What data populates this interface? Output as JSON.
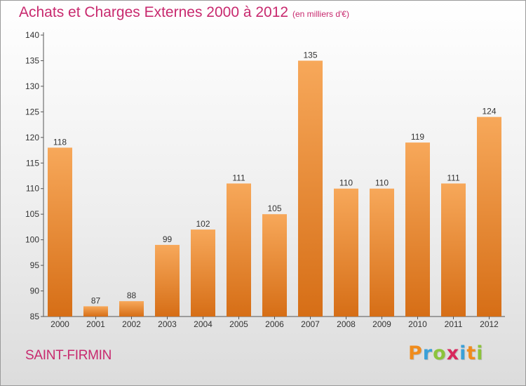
{
  "title": "Achats et Charges Externes 2000 à 2012",
  "subtitle": "(en milliers d'€)",
  "commune": "SAINT-FIRMIN",
  "logo": {
    "letters": [
      "P",
      "r",
      "o",
      "x",
      "i",
      "t",
      "i"
    ],
    "colors": [
      "#f08c1c",
      "#3aa0d8",
      "#8cc43c",
      "#d8285c",
      "#3aa0d8",
      "#f08c1c",
      "#8cc43c"
    ]
  },
  "colors": {
    "bar_top": "#f7a85a",
    "bar_bottom": "#d66e16",
    "text_accent": "#c8296e"
  },
  "chart_data": {
    "type": "bar",
    "categories": [
      "2000",
      "2001",
      "2002",
      "2003",
      "2004",
      "2005",
      "2006",
      "2007",
      "2008",
      "2009",
      "2010",
      "2011",
      "2012"
    ],
    "values": [
      118,
      87,
      88,
      99,
      102,
      111,
      105,
      135,
      110,
      110,
      119,
      111,
      124
    ],
    "ylim": [
      85,
      140
    ],
    "yticks": [
      85,
      90,
      95,
      100,
      105,
      110,
      115,
      120,
      125,
      130,
      135,
      140
    ],
    "xlabel": "",
    "ylabel": "",
    "grid": false,
    "data_labels": true
  }
}
